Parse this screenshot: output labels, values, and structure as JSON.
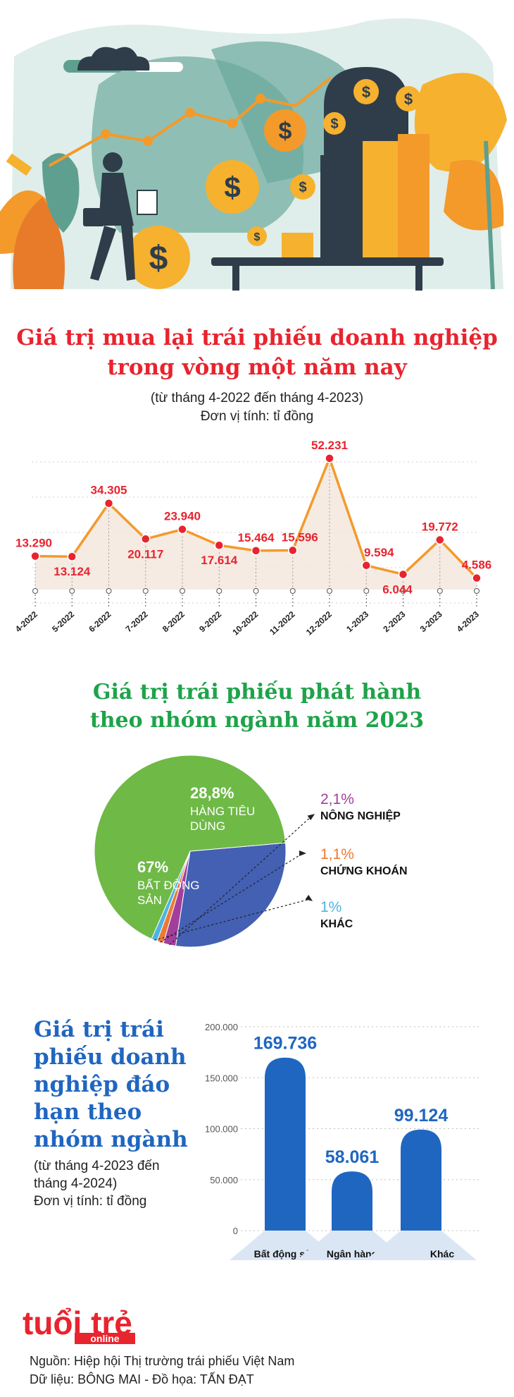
{
  "chart1": {
    "title_line1": "Giá trị mua lại trái phiếu doanh nghiệp",
    "title_line2": "trong vòng một năm nay",
    "subtitle_line1": "(từ tháng 4-2022 đến tháng 4-2023)",
    "subtitle_line2": "Đơn vị tính: tỉ đồng"
  },
  "chart2": {
    "title_line1": "Giá trị trái phiếu phát hành",
    "title_line2": "theo nhóm ngành năm 2023"
  },
  "chart3": {
    "title_lines": [
      "Giá trị trái",
      "phiếu doanh",
      "nghiệp đáo",
      "hạn theo",
      "nhóm ngành"
    ],
    "note_lines": [
      "(từ tháng 4-2023 đến",
      "tháng 4-2024)",
      "Đơn vị tính: tỉ đồng"
    ]
  },
  "logo": {
    "main": "tuổi trẻ",
    "sub": "online"
  },
  "footer": {
    "source": "Nguồn: Hiệp hội Thị trường trái phiếu Việt Nam",
    "credit": "Dữ liệu: BÔNG MAI - Đồ họa: TẤN ĐẠT"
  },
  "colors": {
    "red": "#e8242f",
    "orange": "#f39a2b",
    "green": "#1ea34a",
    "blue": "#1f66c1"
  },
  "chart_data": [
    {
      "type": "line",
      "x": [
        "4-2022",
        "5-2022",
        "6-2022",
        "7-2022",
        "8-2022",
        "9-2022",
        "10-2022",
        "11-2022",
        "12-2022",
        "1-2023",
        "2-2023",
        "3-2023",
        "4-2023"
      ],
      "labels": [
        "13.290",
        "13.124",
        "34.305",
        "20.117",
        "23.940",
        "17.614",
        "15.464",
        "15.596",
        "52.231",
        "9.594",
        "6.044",
        "19.772",
        "4.586"
      ],
      "values": [
        13290,
        13124,
        34305,
        20117,
        23940,
        17614,
        15464,
        15596,
        52231,
        9594,
        6044,
        19772,
        4586
      ],
      "ylim": [
        0,
        55000
      ],
      "grid": true,
      "legend": "none"
    },
    {
      "type": "pie",
      "slices": [
        {
          "pct": "28,8%",
          "value": 28.8,
          "label_lines": [
            "HÀNG TIÊU",
            "DÙNG"
          ],
          "color": "#4360b3",
          "label_color": "#ffffff"
        },
        {
          "pct": "2,1%",
          "value": 2.1,
          "label_lines": [
            "NÔNG NGHIỆP"
          ],
          "color": "#a23f9d",
          "label_color": "#a23f9d"
        },
        {
          "pct": "1,1%",
          "value": 1.1,
          "label_lines": [
            "CHỨNG KHOÁN"
          ],
          "color": "#ec7a35",
          "label_color": "#ec7a35"
        },
        {
          "pct": "1%",
          "value": 1.0,
          "label_lines": [
            "KHÁC"
          ],
          "color": "#4fb3e0",
          "label_color": "#4fb3e0"
        },
        {
          "pct": "67%",
          "value": 67.0,
          "label_lines": [
            "BẤT ĐỘNG",
            "SẢN"
          ],
          "color": "#6fb947",
          "label_color": "#ffffff"
        }
      ]
    },
    {
      "type": "bar",
      "categories": [
        "Bất động sản",
        "Ngân hàng",
        "Khác"
      ],
      "values": [
        169736,
        58061,
        99124
      ],
      "value_labels": [
        "169.736",
        "58.061",
        "99.124"
      ],
      "yticks": [
        "0",
        "50.000",
        "100.000",
        "150.000",
        "200.000"
      ],
      "ylim": [
        0,
        200000
      ],
      "grid": true
    }
  ]
}
